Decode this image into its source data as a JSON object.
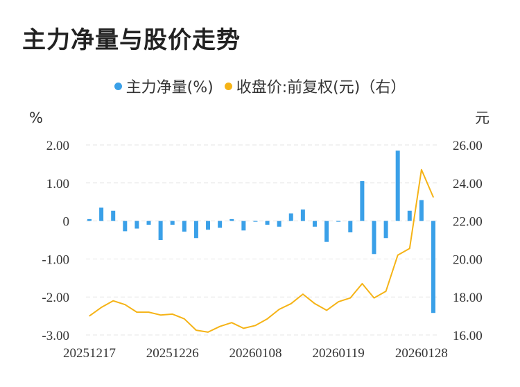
{
  "title": "主力净量与股价走势",
  "colors": {
    "bar": "#3aa0e8",
    "line": "#f5b316",
    "grid": "#e6e6e6",
    "text": "#333333"
  },
  "legend": [
    {
      "label": "主力净量(%)",
      "color": "#3aa0e8"
    },
    {
      "label": "收盘价:前复权(元)（右）",
      "color": "#f5b316"
    }
  ],
  "chart_data": {
    "type": "bar+line",
    "title": "主力净量与股价走势",
    "left_axis": {
      "unit": "%",
      "range": [
        -3,
        2
      ],
      "ticks": [
        "2.00",
        "1.00",
        "0",
        "-1.00",
        "-2.00",
        "-3.00"
      ]
    },
    "right_axis": {
      "unit": "元",
      "range": [
        16,
        26
      ],
      "ticks": [
        "26.00",
        "24.00",
        "22.00",
        "20.00",
        "18.00",
        "16.00"
      ]
    },
    "x_tick_labels": [
      "20251217",
      "20251226",
      "20260108",
      "20260119",
      "20260128"
    ],
    "x_tick_indices": [
      0,
      7,
      14,
      21,
      28
    ],
    "grid": true,
    "series": [
      {
        "name": "主力净量(%)",
        "type": "bar",
        "axis": "left",
        "values": [
          0.05,
          0.35,
          0.27,
          -0.27,
          -0.2,
          -0.1,
          -0.5,
          -0.1,
          -0.28,
          -0.45,
          -0.23,
          -0.18,
          0.05,
          -0.25,
          -0.02,
          -0.1,
          -0.15,
          0.2,
          0.3,
          -0.15,
          -0.55,
          -0.02,
          -0.3,
          1.05,
          -0.87,
          -0.45,
          1.85,
          0.27,
          0.55,
          -2.42
        ]
      },
      {
        "name": "收盘价:前复权(元)（右）",
        "type": "line",
        "axis": "right",
        "values": [
          17.0,
          17.45,
          17.8,
          17.6,
          17.2,
          17.2,
          17.05,
          17.1,
          16.85,
          16.25,
          16.15,
          16.45,
          16.65,
          16.35,
          16.5,
          16.85,
          17.35,
          17.65,
          18.15,
          17.65,
          17.3,
          17.75,
          17.95,
          18.7,
          17.95,
          18.3,
          20.2,
          20.55,
          24.7,
          23.25
        ]
      }
    ]
  }
}
